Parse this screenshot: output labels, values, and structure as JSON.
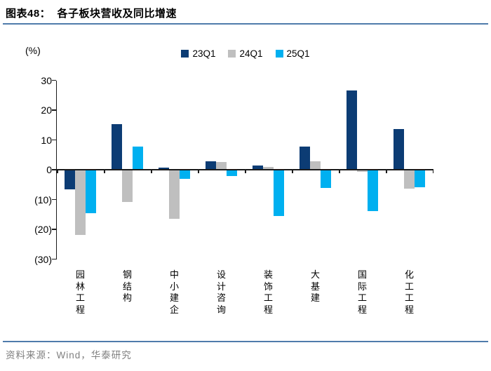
{
  "header": {
    "title": "图表48：  各子板块营收及同比增速"
  },
  "footer": {
    "source": "资料来源：Wind，华泰研究"
  },
  "colors": {
    "accent_line": "#4F7BAB",
    "source_text": "#7F7F7F",
    "axis": "#1A1A1A"
  },
  "chart_data": {
    "type": "bar",
    "title": "各子板块营收及同比增速",
    "unit_label": "(%)",
    "xlabel": "",
    "ylabel": "(%)",
    "ylim": [
      -30,
      30
    ],
    "grid": false,
    "legend_position": "top-center",
    "negative_format": "parentheses",
    "categories": [
      "园林工程",
      "钢结构",
      "中小建企",
      "设计咨询",
      "装饰工程",
      "大基建",
      "国际工程",
      "化工工程"
    ],
    "series": [
      {
        "name": "23Q1",
        "color": "#0C3C74",
        "values": [
          -6.5,
          15.4,
          0.6,
          2.9,
          1.5,
          7.7,
          26.7,
          13.6
        ]
      },
      {
        "name": "24Q1",
        "color": "#BFBFBF",
        "values": [
          -21.9,
          -10.8,
          -16.5,
          2.5,
          1.0,
          2.9,
          -0.6,
          -6.4
        ]
      },
      {
        "name": "25Q1",
        "color": "#00B0F0",
        "values": [
          -14.6,
          7.7,
          -3.1,
          -2.1,
          -15.5,
          -6.2,
          -13.9,
          -5.8
        ]
      }
    ],
    "yticks": [
      {
        "value": 30,
        "label": "30"
      },
      {
        "value": 20,
        "label": "20"
      },
      {
        "value": 10,
        "label": "10"
      },
      {
        "value": 0,
        "label": "0"
      },
      {
        "value": -10,
        "label": "(10)"
      },
      {
        "value": -20,
        "label": "(20)"
      },
      {
        "value": -30,
        "label": "(30)"
      }
    ]
  }
}
